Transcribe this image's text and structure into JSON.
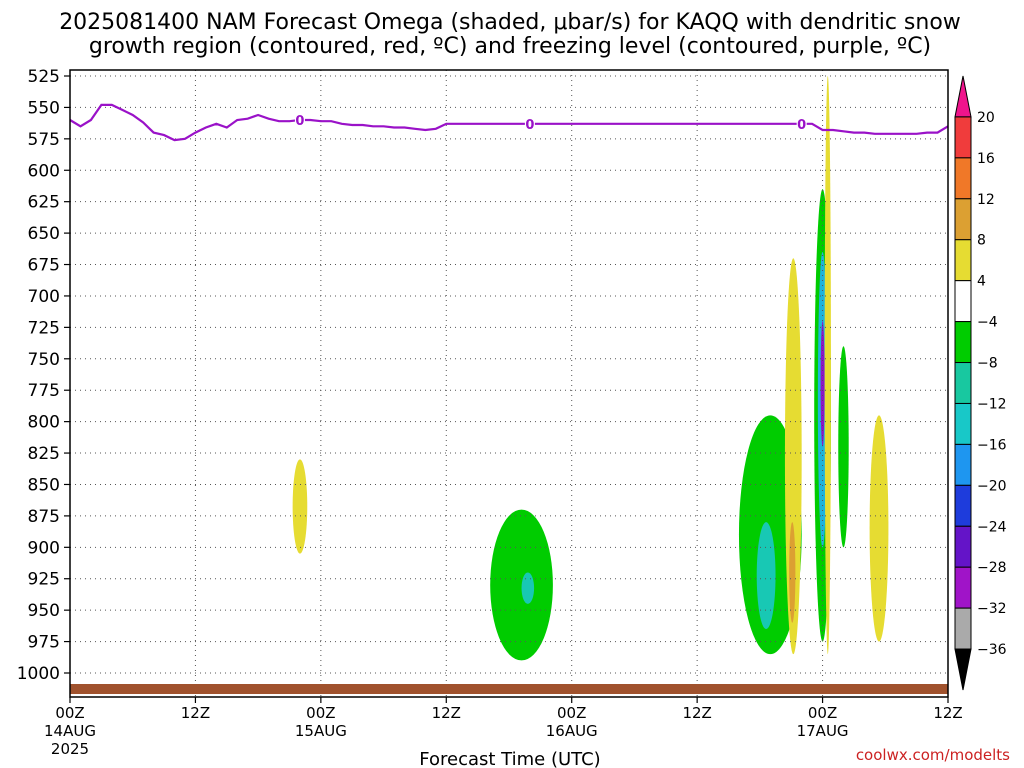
{
  "title_line1": "2025081400 NAM Forecast Omega (shaded, μbar/s) for KAQQ with dendritic snow",
  "title_line2": "growth region (contoured, red, ºC) and freezing level (contoured, purple, ºC)",
  "xlabel": "Forecast Time (UTC)",
  "credit": "coolwx.com/modelts",
  "colors": {
    "freezing": "#9a12c8",
    "terrain": "#a0522d",
    "green": "#00cc00",
    "yellow": "#e6dc32",
    "teal": "#18c8b4",
    "cyan": "#1eb4dc",
    "blue": "#2860f0",
    "purple": "#8c14c8",
    "orange": "#dca032"
  },
  "chart_data": {
    "type": "heatmap",
    "x_unit": "forecast hours from 2025-08-14 00Z",
    "x_range": [
      0,
      84
    ],
    "y_unit": "hPa",
    "y_range": [
      1000,
      525
    ],
    "y_ticks": [
      525,
      550,
      575,
      600,
      625,
      650,
      675,
      700,
      725,
      750,
      775,
      800,
      825,
      850,
      875,
      900,
      925,
      950,
      975,
      1000
    ],
    "x_ticks": [
      {
        "hour": 0,
        "label": "00Z",
        "date": "14AUG",
        "year": "2025"
      },
      {
        "hour": 12,
        "label": "12Z",
        "date": "",
        "year": ""
      },
      {
        "hour": 24,
        "label": "00Z",
        "date": "15AUG",
        "year": ""
      },
      {
        "hour": 36,
        "label": "12Z",
        "date": "",
        "year": ""
      },
      {
        "hour": 48,
        "label": "00Z",
        "date": "16AUG",
        "year": ""
      },
      {
        "hour": 60,
        "label": "12Z",
        "date": "",
        "year": ""
      },
      {
        "hour": 72,
        "label": "00Z",
        "date": "17AUG",
        "year": ""
      },
      {
        "hour": 84,
        "label": "12Z",
        "date": "",
        "year": ""
      }
    ],
    "grid": true,
    "colorbar": {
      "labels": [
        "20",
        "16",
        "12",
        "8",
        "4",
        "−4",
        "−8",
        "−12",
        "−16",
        "−20",
        "−24",
        "−28",
        "−32",
        "−36"
      ],
      "colors": [
        "#f0148c",
        "#f03c3c",
        "#f07828",
        "#dca032",
        "#e6dc32",
        "#ffffff",
        "#00cc00",
        "#18c8a0",
        "#18c8c8",
        "#1e96f0",
        "#1e3cdc",
        "#6414c8",
        "#a014c8",
        "#aaaaaa",
        "#000000"
      ]
    },
    "freezing_level": {
      "label": "0",
      "hours": [
        0,
        1,
        2,
        3,
        4,
        5,
        6,
        7,
        8,
        9,
        10,
        11,
        12,
        13,
        14,
        15,
        16,
        17,
        18,
        19,
        20,
        21,
        22,
        23,
        24,
        25,
        26,
        27,
        28,
        29,
        30,
        31,
        32,
        33,
        34,
        35,
        36,
        37,
        38,
        39,
        40,
        41,
        42,
        43,
        44,
        45,
        46,
        47,
        48,
        49,
        50,
        51,
        52,
        53,
        54,
        55,
        56,
        57,
        58,
        59,
        60,
        61,
        62,
        63,
        64,
        65,
        66,
        67,
        68,
        69,
        70,
        71,
        72,
        73,
        74,
        75,
        76,
        77,
        78,
        79,
        80,
        81,
        82,
        83,
        84
      ],
      "pressure": [
        560,
        565,
        560,
        548,
        548,
        552,
        556,
        562,
        570,
        572,
        576,
        575,
        570,
        566,
        563,
        566,
        560,
        559,
        556,
        559,
        561,
        561,
        560,
        560,
        561,
        561,
        563,
        564,
        564,
        565,
        565,
        566,
        566,
        567,
        568,
        567,
        563,
        563,
        563,
        563,
        563,
        563,
        563,
        563,
        563,
        563,
        563,
        563,
        563,
        563,
        563,
        563,
        563,
        563,
        563,
        563,
        563,
        563,
        563,
        563,
        563,
        563,
        563,
        563,
        563,
        563,
        563,
        563,
        563,
        563,
        563,
        563,
        568,
        568,
        569,
        570,
        570,
        571,
        571,
        571,
        571,
        571,
        570,
        570,
        565
      ],
      "label_hours": [
        22,
        44,
        70
      ]
    },
    "omega_features": [
      {
        "name": "yellow-blob-1",
        "level": "4 to 8",
        "hour_center": 22.0,
        "p_top": 830,
        "p_bottom": 905,
        "hour_halfwidth": 0.7
      },
      {
        "name": "green-blob-1",
        "level": "-4 to -8",
        "hour_center": 43.2,
        "p_top": 870,
        "p_bottom": 990,
        "hour_halfwidth": 3.0
      },
      {
        "name": "teal-spot-1",
        "level": "-8 to -12",
        "hour_center": 43.8,
        "p_top": 920,
        "p_bottom": 945,
        "hour_halfwidth": 0.6
      },
      {
        "name": "green-blob-2",
        "level": "-4 to -8",
        "hour_center": 67.0,
        "p_top": 795,
        "p_bottom": 985,
        "hour_halfwidth": 3.0
      },
      {
        "name": "teal-core-2",
        "level": "-8 to -16",
        "hour_center": 66.6,
        "p_top": 880,
        "p_bottom": 965,
        "hour_halfwidth": 0.9
      },
      {
        "name": "yellow-plume-1",
        "level": "4 to 8",
        "hour_center": 69.2,
        "p_top": 670,
        "p_bottom": 985,
        "hour_halfwidth": 0.8
      },
      {
        "name": "orange-core-1",
        "level": "8 to 12",
        "hour_center": 69.1,
        "p_top": 880,
        "p_bottom": 960,
        "hour_halfwidth": 0.3
      },
      {
        "name": "green-column-3",
        "level": "-4 to -8",
        "hour_center": 72.0,
        "p_top": 615,
        "p_bottom": 975,
        "hour_halfwidth": 0.8
      },
      {
        "name": "cyan-column-3",
        "level": "-12 to -20",
        "hour_center": 72.0,
        "p_top": 665,
        "p_bottom": 900,
        "hour_halfwidth": 0.45
      },
      {
        "name": "purple-core-3",
        "level": "-24 to -32",
        "hour_center": 72.0,
        "p_top": 720,
        "p_bottom": 820,
        "hour_halfwidth": 0.15
      },
      {
        "name": "yellow-spike-2",
        "level": "4 to 8",
        "hour_center": 72.5,
        "p_top": 525,
        "p_bottom": 985,
        "hour_halfwidth": 0.3
      },
      {
        "name": "green-blob-4",
        "level": "-4 to -8",
        "hour_center": 74.0,
        "p_top": 740,
        "p_bottom": 900,
        "hour_halfwidth": 0.5
      },
      {
        "name": "yellow-blob-3",
        "level": "4 to 8",
        "hour_center": 77.4,
        "p_top": 795,
        "p_bottom": 975,
        "hour_halfwidth": 0.9
      }
    ]
  }
}
